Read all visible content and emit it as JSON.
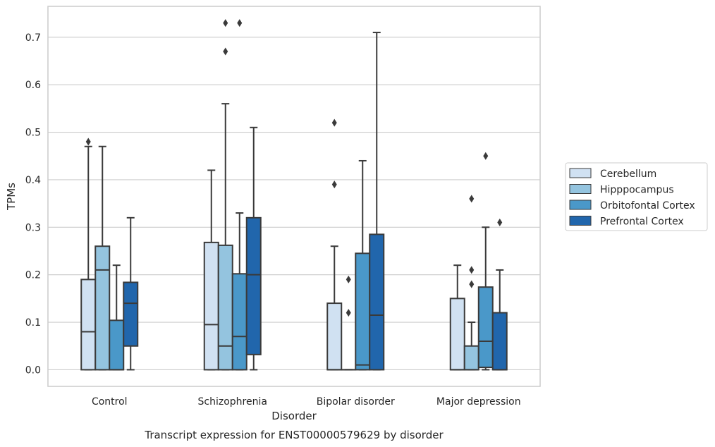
{
  "chart_data": {
    "type": "boxplot",
    "title": "",
    "caption": "Transcript expression for ENST00000579629 by disorder",
    "xlabel": "Disorder",
    "ylabel": "TPMs",
    "ylim": [
      -0.035,
      0.765
    ],
    "yticks": [
      0.0,
      0.1,
      0.2,
      0.3,
      0.4,
      0.5,
      0.6,
      0.7
    ],
    "grid": "horizontal",
    "legend_position": "right",
    "categories": [
      "Control",
      "Schizophrenia",
      "Bipolar disorder",
      "Major depression"
    ],
    "series": [
      {
        "name": "Cerebellum",
        "color": "#d0e1f2",
        "boxes": [
          {
            "whisker_low": 0.0,
            "q1": 0.0,
            "median": 0.08,
            "q3": 0.19,
            "whisker_high": 0.47,
            "outliers": [
              0.48
            ]
          },
          {
            "whisker_low": 0.0,
            "q1": 0.0,
            "median": 0.095,
            "q3": 0.268,
            "whisker_high": 0.42,
            "outliers": []
          },
          {
            "whisker_low": 0.0,
            "q1": 0.0,
            "median": 0.0,
            "q3": 0.14,
            "whisker_high": 0.26,
            "outliers": [
              0.39,
              0.52
            ]
          },
          {
            "whisker_low": 0.0,
            "q1": 0.0,
            "median": 0.0,
            "q3": 0.15,
            "whisker_high": 0.22,
            "outliers": []
          }
        ]
      },
      {
        "name": "Hipppocampus",
        "color": "#94c4df",
        "boxes": [
          {
            "whisker_low": 0.0,
            "q1": 0.0,
            "median": 0.21,
            "q3": 0.26,
            "whisker_high": 0.47,
            "outliers": []
          },
          {
            "whisker_low": 0.0,
            "q1": 0.0,
            "median": 0.05,
            "q3": 0.262,
            "whisker_high": 0.56,
            "outliers": [
              0.67,
              0.73
            ]
          },
          {
            "whisker_low": 0.0,
            "q1": 0.0,
            "median": 0.0,
            "q3": 0.0,
            "whisker_high": 0.0,
            "outliers": [
              0.12,
              0.19
            ]
          },
          {
            "whisker_low": 0.0,
            "q1": 0.0,
            "median": 0.0,
            "q3": 0.05,
            "whisker_high": 0.1,
            "outliers": [
              0.18,
              0.21,
              0.36
            ]
          }
        ]
      },
      {
        "name": "Orbitofontal Cortex",
        "color": "#4a98c9",
        "boxes": [
          {
            "whisker_low": 0.0,
            "q1": 0.0,
            "median": 0.0,
            "q3": 0.104,
            "whisker_high": 0.22,
            "outliers": []
          },
          {
            "whisker_low": 0.0,
            "q1": 0.0,
            "median": 0.07,
            "q3": 0.202,
            "whisker_high": 0.33,
            "outliers": [
              0.73
            ]
          },
          {
            "whisker_low": 0.0,
            "q1": 0.0,
            "median": 0.01,
            "q3": 0.245,
            "whisker_high": 0.44,
            "outliers": []
          },
          {
            "whisker_low": 0.0,
            "q1": 0.005,
            "median": 0.06,
            "q3": 0.174,
            "whisker_high": 0.3,
            "outliers": [
              0.45
            ]
          }
        ]
      },
      {
        "name": "Prefrontal Cortex",
        "color": "#2166ac",
        "boxes": [
          {
            "whisker_low": 0.0,
            "q1": 0.05,
            "median": 0.14,
            "q3": 0.184,
            "whisker_high": 0.32,
            "outliers": []
          },
          {
            "whisker_low": 0.0,
            "q1": 0.032,
            "median": 0.2,
            "q3": 0.32,
            "whisker_high": 0.51,
            "outliers": []
          },
          {
            "whisker_low": 0.0,
            "q1": 0.0,
            "median": 0.115,
            "q3": 0.285,
            "whisker_high": 0.71,
            "outliers": []
          },
          {
            "whisker_low": 0.0,
            "q1": 0.0,
            "median": 0.0,
            "q3": 0.12,
            "whisker_high": 0.21,
            "outliers": [
              0.31
            ]
          }
        ]
      }
    ]
  }
}
